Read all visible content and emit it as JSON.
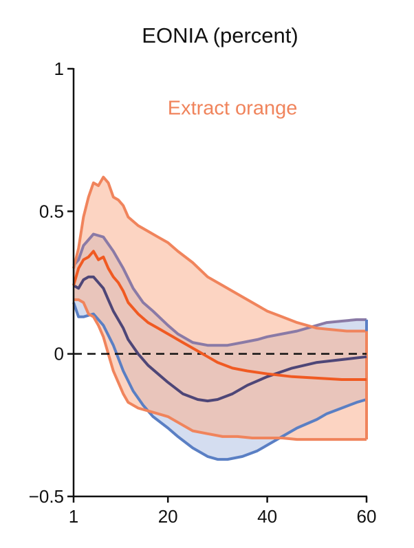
{
  "chart_data": {
    "type": "area",
    "title": "EONIA (percent)",
    "xlabel": "",
    "ylabel": "",
    "xlim": [
      1,
      60
    ],
    "ylim": [
      -0.5,
      1
    ],
    "x_ticks": [
      1,
      20,
      40,
      60
    ],
    "y_ticks": [
      -0.5,
      0,
      0.5,
      1
    ],
    "x_tick_labels": [
      "1",
      "20",
      "40",
      "60"
    ],
    "y_tick_labels": [
      "−0.5",
      "0",
      "0.5",
      "1"
    ],
    "grid": false,
    "reference_line": {
      "y": 0,
      "style": "dashed"
    },
    "annotations": [
      {
        "text": "Extract orange",
        "x": 33,
        "y": 0.84,
        "color": "#f0845c"
      }
    ],
    "colors": {
      "blue_fill": "#cfd9ee",
      "blue_edge": "#5a7fc4",
      "orange_fill": "#f9b08f",
      "orange_edge": "#f0845c",
      "orange_median": "#f05a22",
      "purple_median": "#4e4677",
      "purple_band": "#8a7aa6",
      "zero_line": "#111111"
    },
    "series": [
      {
        "role": "blue-band",
        "x": [
          1,
          2,
          3,
          5,
          7,
          9,
          11,
          13,
          15,
          17,
          20,
          22,
          25,
          28,
          30,
          32,
          35,
          38,
          40,
          43,
          46,
          50,
          52,
          55,
          58,
          60
        ],
        "upper": [
          0.31,
          0.33,
          0.38,
          0.42,
          0.41,
          0.36,
          0.3,
          0.23,
          0.18,
          0.15,
          0.1,
          0.07,
          0.04,
          0.03,
          0.03,
          0.03,
          0.04,
          0.05,
          0.06,
          0.07,
          0.08,
          0.1,
          0.11,
          0.115,
          0.12,
          0.12
        ],
        "lower": [
          0.18,
          0.13,
          0.13,
          0.14,
          0.1,
          0.03,
          -0.06,
          -0.13,
          -0.18,
          -0.22,
          -0.26,
          -0.29,
          -0.33,
          -0.36,
          -0.37,
          -0.37,
          -0.36,
          -0.34,
          -0.32,
          -0.29,
          -0.26,
          -0.23,
          -0.21,
          -0.19,
          -0.17,
          -0.16
        ]
      },
      {
        "role": "orange-band",
        "x": [
          1,
          2,
          3,
          4,
          5,
          6,
          7,
          8,
          9,
          10,
          11,
          12,
          14,
          16,
          18,
          20,
          22,
          25,
          28,
          31,
          34,
          37,
          40,
          43,
          46,
          50,
          53,
          56,
          60
        ],
        "upper": [
          0.3,
          0.37,
          0.48,
          0.55,
          0.6,
          0.59,
          0.62,
          0.6,
          0.55,
          0.54,
          0.52,
          0.48,
          0.45,
          0.43,
          0.41,
          0.39,
          0.36,
          0.32,
          0.27,
          0.24,
          0.21,
          0.18,
          0.15,
          0.13,
          0.11,
          0.09,
          0.085,
          0.08,
          0.08
        ],
        "lower": [
          0.19,
          0.19,
          0.18,
          0.14,
          0.13,
          0.1,
          0.06,
          0.0,
          -0.06,
          -0.1,
          -0.14,
          -0.17,
          -0.19,
          -0.2,
          -0.21,
          -0.22,
          -0.24,
          -0.27,
          -0.28,
          -0.29,
          -0.29,
          -0.295,
          -0.295,
          -0.295,
          -0.3,
          -0.3,
          -0.3,
          -0.3,
          -0.3
        ]
      },
      {
        "role": "orange-median",
        "x": [
          1,
          2,
          3,
          4,
          5,
          6,
          7,
          8,
          9,
          10,
          11,
          12,
          14,
          16,
          18,
          20,
          23,
          26,
          28,
          30,
          33,
          36,
          40,
          45,
          50,
          55,
          60
        ],
        "values": [
          0.24,
          0.3,
          0.33,
          0.34,
          0.36,
          0.33,
          0.34,
          0.3,
          0.27,
          0.25,
          0.22,
          0.18,
          0.14,
          0.11,
          0.09,
          0.07,
          0.04,
          0.01,
          -0.01,
          -0.03,
          -0.05,
          -0.06,
          -0.07,
          -0.08,
          -0.085,
          -0.09,
          -0.09
        ]
      },
      {
        "role": "purple-median",
        "x": [
          1,
          2,
          3,
          4,
          5,
          6,
          7,
          8,
          9,
          10,
          11,
          12,
          14,
          16,
          18,
          20,
          23,
          26,
          28,
          30,
          33,
          36,
          40,
          45,
          50,
          55,
          60
        ],
        "values": [
          0.24,
          0.23,
          0.26,
          0.27,
          0.27,
          0.25,
          0.23,
          0.19,
          0.15,
          0.12,
          0.09,
          0.05,
          0.0,
          -0.04,
          -0.07,
          -0.1,
          -0.14,
          -0.16,
          -0.165,
          -0.16,
          -0.14,
          -0.11,
          -0.08,
          -0.05,
          -0.03,
          -0.02,
          -0.01
        ]
      }
    ]
  }
}
